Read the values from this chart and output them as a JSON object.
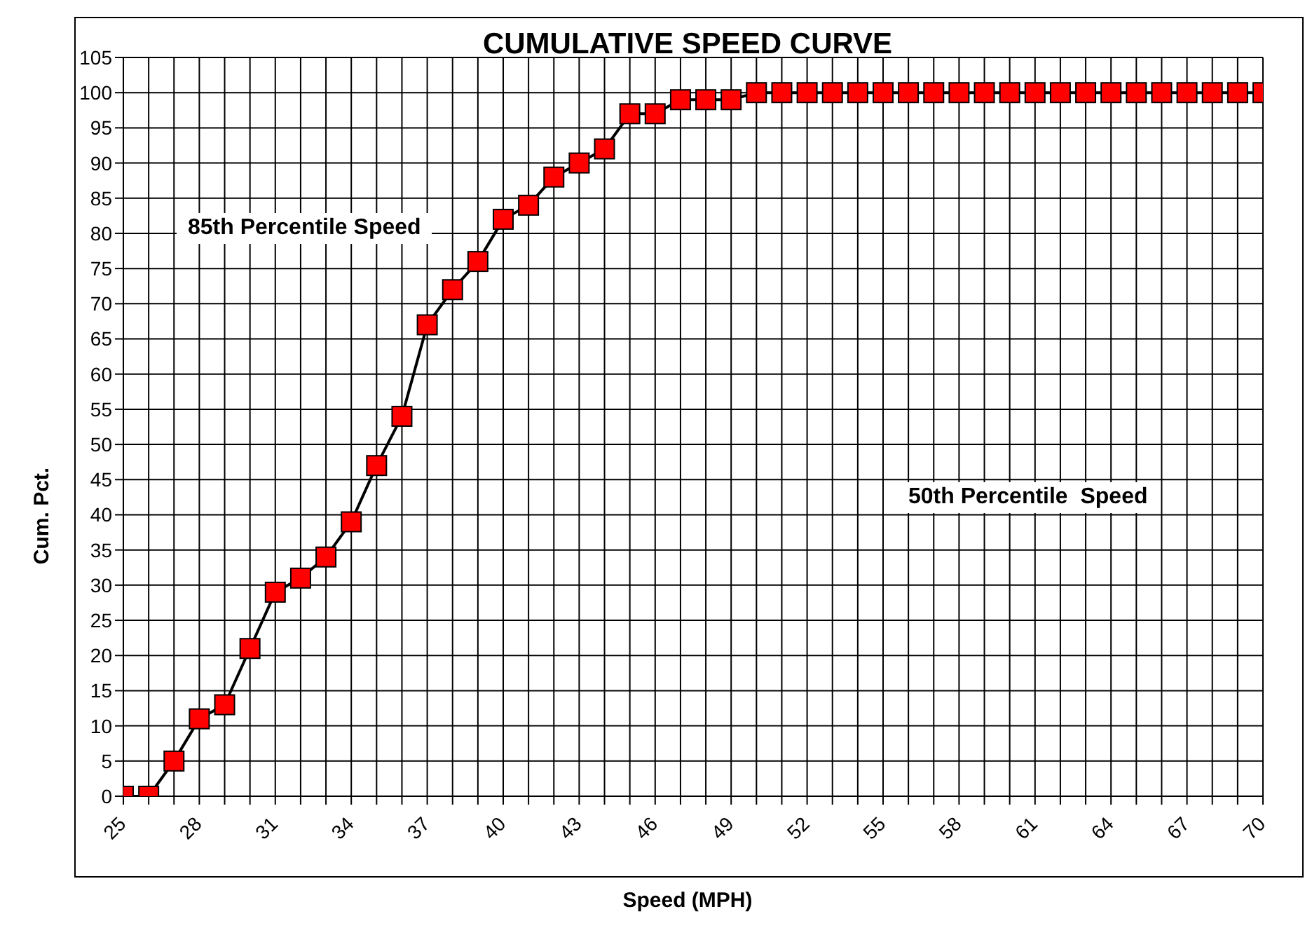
{
  "chart_data": {
    "type": "line",
    "title": "CUMULATIVE SPEED CURVE",
    "xlabel": "Speed (MPH)",
    "ylabel": "Cum. Pct.",
    "x": [
      25,
      26,
      27,
      28,
      29,
      30,
      31,
      32,
      33,
      34,
      35,
      36,
      37,
      38,
      39,
      40,
      41,
      42,
      43,
      44,
      45,
      46,
      47,
      48,
      49,
      50,
      51,
      52,
      53,
      54,
      55,
      56,
      57,
      58,
      59,
      60,
      61,
      62,
      63,
      64,
      65,
      66,
      67,
      68,
      69,
      70
    ],
    "series": [
      {
        "color": "#ff0000",
        "values": [
          0,
          0,
          5,
          11,
          13,
          21,
          29,
          31,
          34,
          39,
          47,
          54,
          67,
          72,
          76,
          82,
          84,
          88,
          90,
          92,
          97,
          97,
          99,
          99,
          99,
          100,
          100,
          100,
          100,
          100,
          100,
          100,
          100,
          100,
          100,
          100,
          100,
          100,
          100,
          100,
          100,
          100,
          100,
          100,
          100,
          100
        ]
      }
    ],
    "xlim": [
      25,
      70
    ],
    "xticks": [
      25,
      {
        "value": 26,
        "label": null
      },
      {
        "value": 27,
        "label": null
      },
      28,
      {
        "value": 29,
        "label": null
      },
      {
        "value": 30,
        "label": null
      },
      31,
      {
        "value": 32,
        "label": null
      },
      {
        "value": 33,
        "label": null
      },
      34,
      {
        "value": 35,
        "label": null
      },
      {
        "value": 36,
        "label": null
      },
      37,
      {
        "value": 38,
        "label": null
      },
      {
        "value": 39,
        "label": null
      },
      40,
      {
        "value": 41,
        "label": null
      },
      {
        "value": 42,
        "label": null
      },
      43,
      {
        "value": 44,
        "label": null
      },
      {
        "value": 45,
        "label": null
      },
      46,
      {
        "value": 47,
        "label": null
      },
      {
        "value": 48,
        "label": null
      },
      49,
      {
        "value": 50,
        "label": null
      },
      {
        "value": 51,
        "label": null
      },
      52,
      {
        "value": 53,
        "label": null
      },
      {
        "value": 54,
        "label": null
      },
      55,
      {
        "value": 56,
        "label": null
      },
      {
        "value": 57,
        "label": null
      },
      58,
      {
        "value": 59,
        "label": null
      },
      {
        "value": 60,
        "label": null
      },
      61,
      {
        "value": 62,
        "label": null
      },
      {
        "value": 63,
        "label": null
      },
      64,
      {
        "value": 65,
        "label": null
      },
      {
        "value": 66,
        "label": null
      },
      67,
      {
        "value": 68,
        "label": null
      },
      {
        "value": 69,
        "label": null
      },
      70
    ],
    "ylim": [
      0,
      105
    ],
    "yticks": [
      0,
      5,
      10,
      15,
      20,
      25,
      30,
      35,
      40,
      45,
      50,
      55,
      60,
      65,
      70,
      75,
      80,
      85,
      90,
      95,
      100,
      105
    ],
    "grid": true,
    "marker": "square",
    "line_style": "solid",
    "annotations": [
      "85th Percentile Speed",
      "50th Percentile  Speed"
    ]
  }
}
